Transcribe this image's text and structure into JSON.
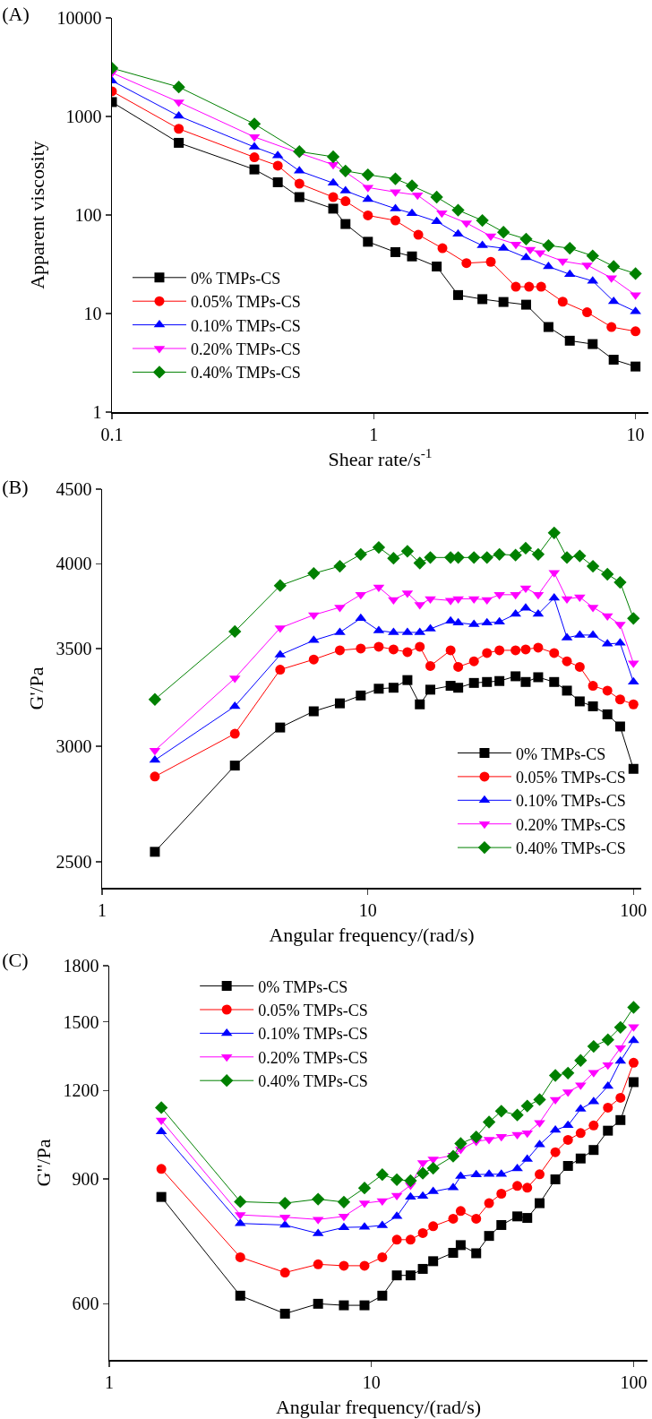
{
  "chart_data": [
    {
      "type": "line",
      "title": "(A)",
      "xlabel": "Shear rate/s$^{-1}$",
      "ylabel": "Apparent viscosity",
      "log": "xy",
      "xlim": [
        0.1,
        11.2
      ],
      "ylim": [
        1,
        10000
      ],
      "xticks": [
        0.1,
        1,
        10
      ],
      "yticks": [
        1,
        10,
        100,
        1000,
        10000
      ],
      "legend": "bottom left",
      "series": [
        {
          "name": "0% TMPs-CS",
          "color": "#000000",
          "marker": "square",
          "x": [
            0.1,
            0.18,
            0.35,
            0.43,
            0.52,
            0.7,
            0.78,
            0.95,
            1.21,
            1.4,
            1.74,
            2.1,
            2.6,
            3.13,
            3.82,
            4.65,
            5.61,
            6.86,
            8.25,
            10
          ],
          "values": [
            1400,
            540,
            290,
            215,
            152,
            116,
            81,
            53.5,
            42,
            38,
            30,
            15.4,
            14,
            13.1,
            12.3,
            7.3,
            5.3,
            4.9,
            3.4,
            2.9
          ]
        },
        {
          "name": "0.05% TMPs-CS",
          "color": "#ff0000",
          "marker": "circle",
          "x": [
            0.1,
            0.18,
            0.35,
            0.43,
            0.52,
            0.7,
            0.78,
            0.95,
            1.21,
            1.48,
            1.83,
            2.26,
            2.8,
            3.49,
            3.92,
            4.36,
            5.27,
            6.53,
            8.09,
            10
          ],
          "values": [
            1800,
            750,
            385,
            317,
            208,
            152,
            138,
            99,
            88,
            63,
            46,
            32.5,
            33.5,
            18.7,
            18.7,
            18.7,
            13.2,
            10.3,
            7.3,
            6.6
          ]
        },
        {
          "name": "0.10% TMPs-CS",
          "color": "#0000ff",
          "marker": "triangle",
          "x": [
            0.1,
            0.18,
            0.35,
            0.43,
            0.52,
            0.7,
            0.78,
            0.95,
            1.21,
            1.4,
            1.74,
            2.1,
            2.6,
            3.13,
            3.82,
            4.65,
            5.61,
            6.86,
            8.25,
            10
          ],
          "values": [
            2300,
            1010,
            490,
            400,
            280,
            211,
            176,
            144,
            116,
            104,
            86,
            64,
            49,
            46,
            37,
            30,
            25,
            21.4,
            13.3,
            10.5
          ]
        },
        {
          "name": "0.20% TMPs-CS",
          "color": "#ff00ff",
          "marker": "triangle-down",
          "x": [
            0.1,
            0.18,
            0.35,
            0.52,
            0.7,
            0.78,
            0.95,
            1.21,
            1.47,
            1.82,
            2.26,
            2.8,
            3.49,
            3.96,
            4.32,
            5.27,
            6.53,
            8.09,
            10
          ],
          "values": [
            2770,
            1400,
            620,
            425,
            324,
            273,
            190,
            171,
            159,
            105,
            83,
            61,
            50.5,
            44.6,
            41.4,
            34,
            31,
            23,
            15.4
          ]
        },
        {
          "name": "0.40% TMPs-CS",
          "color": "#008000",
          "marker": "diamond",
          "x": [
            0.1,
            0.18,
            0.35,
            0.52,
            0.7,
            0.78,
            0.95,
            1.21,
            1.4,
            1.74,
            2.1,
            2.6,
            3.13,
            3.82,
            4.65,
            5.61,
            6.86,
            8.25,
            10
          ],
          "values": [
            3090,
            1990,
            840,
            440,
            390,
            280,
            256,
            233,
            198,
            152,
            112,
            88,
            67,
            57,
            49,
            46,
            38.5,
            30,
            25.4
          ]
        }
      ]
    },
    {
      "type": "line",
      "title": "(B)",
      "xlabel": "Angular frequency/(rad/s)",
      "ylabel": "G'/Pa",
      "log": "xy",
      "xlim": [
        1,
        107
      ],
      "ylim": [
        2400,
        4500
      ],
      "xticks": [
        1,
        10,
        100
      ],
      "yticks": [
        2500,
        3000,
        3500,
        4000,
        4500
      ],
      "legend": "bottom right",
      "x": [
        1.58,
        3.16,
        4.68,
        6.26,
        7.85,
        9.41,
        11,
        12.5,
        14.1,
        15.7,
        17.2,
        20.5,
        21.9,
        25.1,
        28.1,
        31.3,
        36,
        39.3,
        43.8,
        50.3,
        56.2,
        62.8,
        70.4,
        79.8,
        89.1,
        100
      ],
      "series": [
        {
          "name": "0% TMPs-CS",
          "color": "#000000",
          "marker": "square",
          "values": [
            2540,
            2910,
            3090,
            3170,
            3210,
            3250,
            3285,
            3290,
            3330,
            3205,
            3280,
            3300,
            3290,
            3315,
            3320,
            3325,
            3350,
            3320,
            3345,
            3320,
            3275,
            3220,
            3195,
            3155,
            3095,
            2895
          ]
        },
        {
          "name": "0.05% TMPs-CS",
          "color": "#ff0000",
          "marker": "circle",
          "values": [
            2860,
            3060,
            3385,
            3440,
            3490,
            3500,
            3510,
            3495,
            3480,
            3510,
            3405,
            3490,
            3400,
            3430,
            3475,
            3490,
            3490,
            3495,
            3505,
            3475,
            3430,
            3400,
            3300,
            3275,
            3230,
            3205
          ]
        },
        {
          "name": "0.10% TMPs-CS",
          "color": "#0000ff",
          "marker": "triangle",
          "values": [
            2935,
            3195,
            3465,
            3545,
            3590,
            3670,
            3600,
            3590,
            3590,
            3590,
            3610,
            3655,
            3645,
            3635,
            3645,
            3650,
            3695,
            3730,
            3695,
            3790,
            3560,
            3575,
            3575,
            3525,
            3530,
            3320
          ]
        },
        {
          "name": "0.20% TMPs-CS",
          "color": "#ff00ff",
          "marker": "triangle-down",
          "values": [
            2980,
            3340,
            3615,
            3690,
            3735,
            3810,
            3855,
            3780,
            3820,
            3750,
            3785,
            3775,
            3785,
            3785,
            3780,
            3810,
            3810,
            3850,
            3810,
            3945,
            3785,
            3795,
            3735,
            3685,
            3635,
            3420
          ]
        },
        {
          "name": "0.40% TMPs-CS",
          "color": "#008000",
          "marker": "diamond",
          "values": [
            3230,
            3595,
            3865,
            3940,
            3985,
            4060,
            4105,
            4035,
            4080,
            4005,
            4040,
            4040,
            4040,
            4040,
            4040,
            4060,
            4055,
            4100,
            4060,
            4200,
            4040,
            4050,
            3985,
            3935,
            3885,
            3670
          ]
        }
      ]
    },
    {
      "type": "line",
      "title": "(C)",
      "xlabel": "Angular frequency/(rad/s)",
      "ylabel": "G\"/Pa",
      "log": "xy",
      "xlim": [
        1,
        113
      ],
      "ylim": [
        500,
        1800
      ],
      "xticks": [
        1,
        10,
        100
      ],
      "yticks": [
        600,
        900,
        1200,
        1500,
        1800
      ],
      "legend": "top left",
      "x": [
        1.58,
        3.16,
        4.68,
        6.26,
        7.85,
        9.41,
        11,
        12.5,
        14.1,
        15.7,
        17.2,
        20.5,
        21.9,
        25.1,
        28.1,
        31.3,
        36,
        39.3,
        43.8,
        50.3,
        56.2,
        62.8,
        70.4,
        79.8,
        89.1,
        100
      ],
      "series": [
        {
          "name": "0% TMPs-CS",
          "color": "#000000",
          "marker": "square",
          "values": [
            849,
            616,
            581,
            600,
            597,
            597,
            616,
            658,
            658,
            672,
            689,
            708,
            726,
            707,
            748,
            775,
            797,
            793,
            832,
            899,
            939,
            962,
            989,
            1053,
            1090,
            1233
          ]
        },
        {
          "name": "0.05% TMPs-CS",
          "color": "#ff0000",
          "marker": "circle",
          "values": [
            930,
            698,
            664,
            682,
            679,
            679,
            698,
            739,
            739,
            755,
            772,
            791,
            811,
            791,
            832,
            858,
            880,
            875,
            914,
            982,
            1022,
            1045,
            1071,
            1135,
            1172,
            1313
          ]
        },
        {
          "name": "0.10% TMPs-CS",
          "color": "#0000ff",
          "marker": "triangle",
          "values": [
            1050,
            779,
            775,
            754,
            769,
            770,
            774,
            797,
            849,
            851,
            864,
            875,
            908,
            913,
            914,
            914,
            931,
            960,
            1006,
            1055,
            1071,
            1130,
            1157,
            1217,
            1320,
            1412
          ]
        },
        {
          "name": "0.20% TMPs-CS",
          "color": "#ff00ff",
          "marker": "triangle-down",
          "values": [
            1089,
            801,
            795,
            789,
            797,
            832,
            838,
            853,
            882,
            949,
            960,
            972,
            991,
            1017,
            1023,
            1033,
            1040,
            1045,
            1081,
            1165,
            1194,
            1221,
            1272,
            1304,
            1378,
            1476
          ]
        },
        {
          "name": "0.40% TMPs-CS",
          "color": "#008000",
          "marker": "diamond",
          "values": [
            1135,
            836,
            832,
            843,
            835,
            874,
            913,
            898,
            895,
            917,
            932,
            969,
            1010,
            1032,
            1083,
            1122,
            1108,
            1141,
            1165,
            1260,
            1270,
            1323,
            1385,
            1415,
            1473,
            1572
          ]
        }
      ]
    }
  ]
}
